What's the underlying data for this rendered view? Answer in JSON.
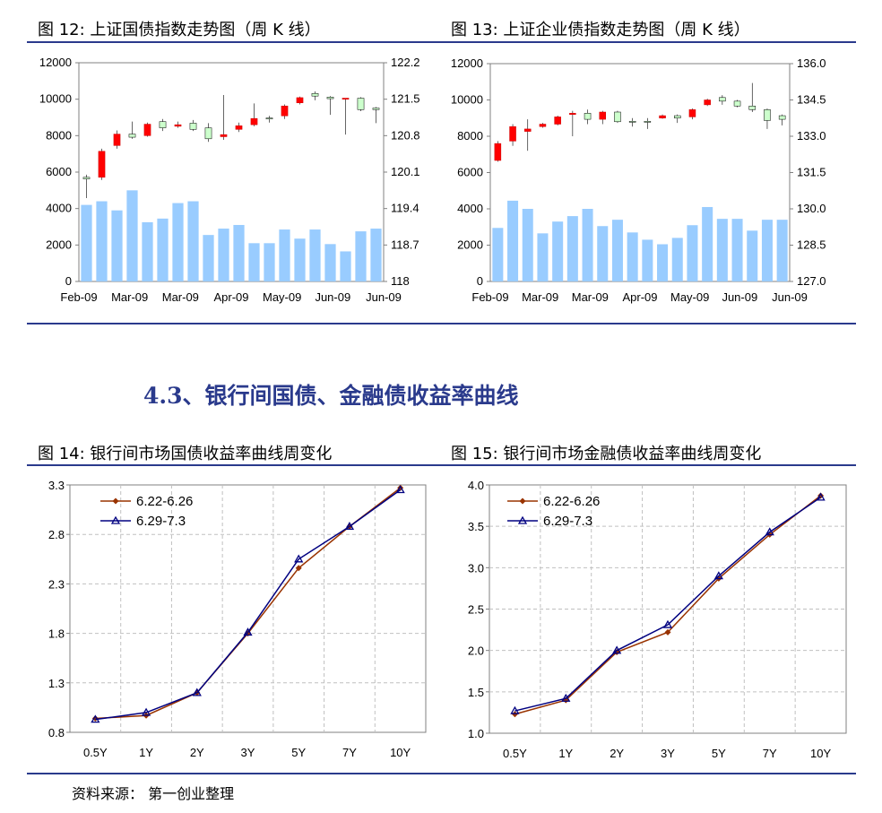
{
  "figures": [
    {
      "title": "图 12:  上证国债指数走势图（周 K 线）"
    },
    {
      "title": "图 13:  上证企业债指数走势图（周 K 线）"
    },
    {
      "title": "图 14:  银行间市场国债收益率曲线周变化"
    },
    {
      "title": "图 15:  银行间市场金融债收益率曲线周变化"
    }
  ],
  "section_heading": "4.3、银行间国债、金融债收益率曲线",
  "source": "资料来源：   第一创业整理",
  "colors": {
    "rule": "#2a3a8c",
    "volume_bar": "#99ccff",
    "candle_up": "#ff0000",
    "candle_down": "#ccffcc",
    "series1": "#993300",
    "series2": "#000080",
    "grid": "#c0c0c0"
  },
  "chart_data": [
    {
      "type": "candlestick",
      "title": "图 12:  上证国债指数走势图（周 K 线）",
      "x_tick_labels": [
        "Feb-09",
        "Mar-09",
        "Mar-09",
        "Apr-09",
        "May-09",
        "Jun-09",
        "Jun-09"
      ],
      "left_axis": {
        "ylim": [
          0,
          12000
        ],
        "ticks": [
          "0",
          "2000",
          "4000",
          "6000",
          "8000",
          "10000",
          "12000"
        ]
      },
      "right_axis": {
        "ylim": [
          118.0,
          122.2
        ],
        "ticks": [
          "118",
          "118.7",
          "119.4",
          "120.1",
          "120.8",
          "121.5",
          "122.2"
        ]
      },
      "volume": [
        4200,
        4400,
        3900,
        5000,
        3250,
        3450,
        4300,
        4400,
        2550,
        2900,
        3100,
        2100,
        2100,
        2850,
        2350,
        2850,
        2050,
        1650,
        2750,
        2900
      ],
      "candles": [
        {
          "open": 120.0,
          "close": 119.97,
          "high": 120.05,
          "low": 119.6
        },
        {
          "open": 120.0,
          "close": 120.5,
          "high": 120.55,
          "low": 119.95
        },
        {
          "open": 120.61,
          "close": 120.83,
          "high": 120.9,
          "low": 120.55
        },
        {
          "open": 120.83,
          "close": 120.77,
          "high": 121.07,
          "low": 120.74
        },
        {
          "open": 120.8,
          "close": 121.02,
          "high": 121.05,
          "low": 120.78
        },
        {
          "open": 121.07,
          "close": 120.95,
          "high": 121.12,
          "low": 120.89
        },
        {
          "open": 120.98,
          "close": 121.01,
          "high": 121.07,
          "low": 120.95
        },
        {
          "open": 121.04,
          "close": 120.92,
          "high": 121.1,
          "low": 120.89
        },
        {
          "open": 120.95,
          "close": 120.74,
          "high": 121.04,
          "low": 120.68
        },
        {
          "open": 120.78,
          "close": 120.82,
          "high": 121.58,
          "low": 120.72
        },
        {
          "open": 120.92,
          "close": 120.99,
          "high": 121.05,
          "low": 120.87
        },
        {
          "open": 121.01,
          "close": 121.13,
          "high": 121.42,
          "low": 120.98
        },
        {
          "open": 121.14,
          "close": 121.12,
          "high": 121.18,
          "low": 121.05
        },
        {
          "open": 121.18,
          "close": 121.37,
          "high": 121.4,
          "low": 121.12
        },
        {
          "open": 121.43,
          "close": 121.53,
          "high": 121.55,
          "low": 121.4
        },
        {
          "open": 121.61,
          "close": 121.56,
          "high": 121.65,
          "low": 121.48
        },
        {
          "open": 121.54,
          "close": 121.51,
          "high": 121.56,
          "low": 121.2
        },
        {
          "open": 121.51,
          "close": 121.52,
          "high": 121.52,
          "low": 120.82
        },
        {
          "open": 121.52,
          "close": 121.3,
          "high": 121.54,
          "low": 121.27
        },
        {
          "open": 121.33,
          "close": 121.3,
          "high": 121.35,
          "low": 121.04
        }
      ]
    },
    {
      "type": "candlestick",
      "title": "图 13:  上证企业债指数走势图（周 K 线）",
      "x_tick_labels": [
        "Feb-09",
        "Mar-09",
        "Mar-09",
        "Apr-09",
        "May-09",
        "Jun-09",
        "Jun-09"
      ],
      "left_axis": {
        "ylim": [
          0,
          12000
        ],
        "ticks": [
          "0",
          "2000",
          "4000",
          "6000",
          "8000",
          "10000",
          "12000"
        ]
      },
      "right_axis": {
        "ylim": [
          127.0,
          136.0
        ],
        "ticks": [
          "127.0",
          "128.5",
          "130.0",
          "131.5",
          "133.0",
          "134.5",
          "136.0"
        ]
      },
      "volume": [
        2950,
        4450,
        4000,
        2650,
        3300,
        3600,
        4000,
        3050,
        3400,
        2700,
        2300,
        2050,
        2400,
        3100,
        4100,
        3450,
        3450,
        2800,
        3400,
        3400
      ],
      "candles": [
        {
          "open": 132.0,
          "close": 132.7,
          "high": 132.8,
          "low": 131.95
        },
        {
          "open": 132.8,
          "close": 133.4,
          "high": 133.5,
          "low": 132.6
        },
        {
          "open": 133.2,
          "close": 133.3,
          "high": 133.7,
          "low": 132.4
        },
        {
          "open": 133.4,
          "close": 133.5,
          "high": 133.55,
          "low": 133.35
        },
        {
          "open": 133.5,
          "close": 133.8,
          "high": 133.85,
          "low": 133.45
        },
        {
          "open": 133.9,
          "close": 133.95,
          "high": 134.05,
          "low": 133.0
        },
        {
          "open": 133.95,
          "close": 133.7,
          "high": 134.1,
          "low": 133.5
        },
        {
          "open": 133.7,
          "close": 134.0,
          "high": 134.05,
          "low": 133.5
        },
        {
          "open": 134.0,
          "close": 133.6,
          "high": 134.05,
          "low": 133.55
        },
        {
          "open": 133.62,
          "close": 133.6,
          "high": 133.75,
          "low": 133.4
        },
        {
          "open": 133.62,
          "close": 133.6,
          "high": 133.75,
          "low": 133.3
        },
        {
          "open": 133.75,
          "close": 133.85,
          "high": 133.9,
          "low": 133.72
        },
        {
          "open": 133.85,
          "close": 133.75,
          "high": 133.9,
          "low": 133.55
        },
        {
          "open": 133.8,
          "close": 134.1,
          "high": 134.15,
          "low": 133.7
        },
        {
          "open": 134.3,
          "close": 134.5,
          "high": 134.55,
          "low": 134.25
        },
        {
          "open": 134.6,
          "close": 134.45,
          "high": 134.7,
          "low": 134.3
        },
        {
          "open": 134.45,
          "close": 134.25,
          "high": 134.5,
          "low": 134.2
        },
        {
          "open": 134.25,
          "close": 134.1,
          "high": 135.2,
          "low": 134.0
        },
        {
          "open": 134.1,
          "close": 133.65,
          "high": 134.15,
          "low": 133.3
        },
        {
          "open": 133.85,
          "close": 133.7,
          "high": 133.9,
          "low": 133.45
        }
      ]
    },
    {
      "type": "line",
      "title": "图 14:  银行间市场国债收益率曲线周变化",
      "categories": [
        "0.5Y",
        "1Y",
        "2Y",
        "3Y",
        "5Y",
        "7Y",
        "10Y"
      ],
      "ylim": [
        0.8,
        3.3
      ],
      "y_ticks": [
        "0.8",
        "1.3",
        "1.8",
        "2.3",
        "2.8",
        "3.3"
      ],
      "legend_position": "top-left",
      "series": [
        {
          "name": "6.22-6.26",
          "marker": "diamond",
          "values": [
            0.94,
            0.97,
            1.2,
            1.8,
            2.46,
            2.88,
            3.27
          ]
        },
        {
          "name": "6.29-7.3",
          "marker": "triangle",
          "values": [
            0.93,
            1.0,
            1.2,
            1.81,
            2.55,
            2.88,
            3.25
          ]
        }
      ]
    },
    {
      "type": "line",
      "title": "图 15:  银行间市场金融债收益率曲线周变化",
      "categories": [
        "0.5Y",
        "1Y",
        "2Y",
        "3Y",
        "5Y",
        "7Y",
        "10Y"
      ],
      "ylim": [
        1.0,
        4.0
      ],
      "y_ticks": [
        "1.0",
        "1.5",
        "2.0",
        "2.5",
        "3.0",
        "3.5",
        "4.0"
      ],
      "legend_position": "top-left",
      "series": [
        {
          "name": "6.22-6.26",
          "marker": "diamond",
          "values": [
            1.23,
            1.4,
            1.98,
            2.22,
            2.87,
            3.4,
            3.87
          ]
        },
        {
          "name": "6.29-7.3",
          "marker": "triangle",
          "values": [
            1.27,
            1.42,
            2.0,
            2.31,
            2.9,
            3.43,
            3.85
          ]
        }
      ]
    }
  ]
}
